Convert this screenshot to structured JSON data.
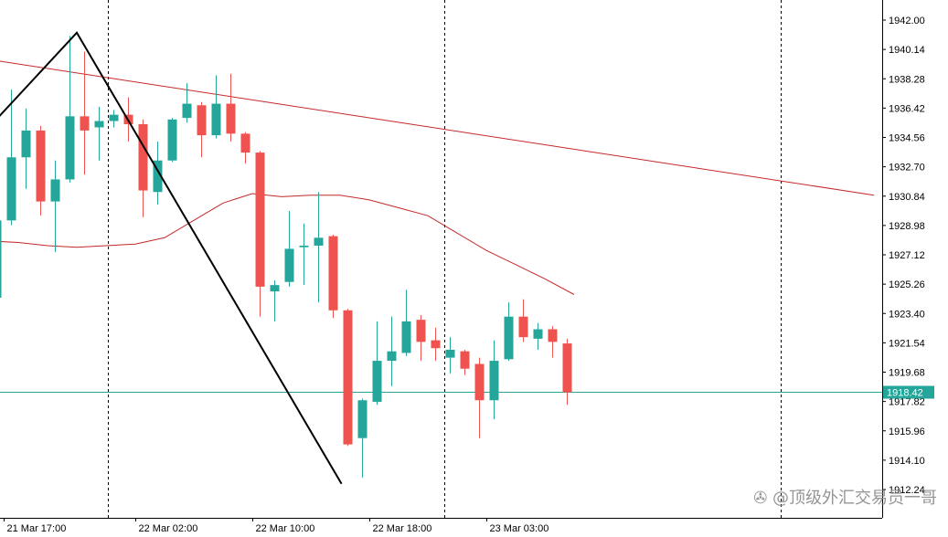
{
  "chart_data": {
    "type": "candlestick",
    "price_axis": {
      "min": 1912.24,
      "max": 1942.0,
      "ticks": [
        "1942.00",
        "1940.14",
        "1938.28",
        "1936.42",
        "1934.56",
        "1932.70",
        "1930.84",
        "1928.98",
        "1927.12",
        "1925.26",
        "1923.40",
        "1921.54",
        "1919.68",
        "1917.82",
        "1915.96",
        "1914.10",
        "1912.24"
      ]
    },
    "time_axis": {
      "labels": [
        {
          "text": "21 Mar 17:00",
          "bar": 0.5
        },
        {
          "text": "22 Mar 02:00",
          "bar": 9.5
        },
        {
          "text": "22 Mar 10:00",
          "bar": 17.5
        },
        {
          "text": "22 Mar 18:00",
          "bar": 25.5
        },
        {
          "text": "23 Mar 03:00",
          "bar": 33.5
        }
      ],
      "separators": [
        7.6,
        30.6,
        53.6
      ]
    },
    "current_price": {
      "value": "1918.42",
      "price": 1918.42
    },
    "colors": {
      "bull": "#26a69a",
      "bear": "#ef5350",
      "wick_bull": "#26a69a",
      "wick_bear": "#ef5350",
      "ma": "#c62828",
      "trend": "#c62828",
      "zigzag": "#000000",
      "price_line": "#26a69a"
    },
    "candles": [
      {
        "o": 1924.4,
        "h": 1936.1,
        "l": 1917.2,
        "c": 1929.3
      },
      {
        "o": 1929.3,
        "h": 1937.6,
        "l": 1929.0,
        "c": 1933.3
      },
      {
        "o": 1933.3,
        "h": 1936.4,
        "l": 1931.3,
        "c": 1935.0
      },
      {
        "o": 1935.0,
        "h": 1935.3,
        "l": 1929.6,
        "c": 1930.5
      },
      {
        "o": 1930.5,
        "h": 1933.1,
        "l": 1927.3,
        "c": 1931.9
      },
      {
        "o": 1931.9,
        "h": 1941.0,
        "l": 1931.7,
        "c": 1935.9
      },
      {
        "o": 1935.9,
        "h": 1940.0,
        "l": 1932.2,
        "c": 1935.0
      },
      {
        "o": 1935.2,
        "h": 1936.5,
        "l": 1933.1,
        "c": 1935.6
      },
      {
        "o": 1935.6,
        "h": 1936.3,
        "l": 1935.2,
        "c": 1936.0
      },
      {
        "o": 1936.0,
        "h": 1937.1,
        "l": 1934.3,
        "c": 1935.4
      },
      {
        "o": 1935.4,
        "h": 1935.7,
        "l": 1929.5,
        "c": 1931.2
      },
      {
        "o": 1931.1,
        "h": 1934.3,
        "l": 1930.3,
        "c": 1933.1
      },
      {
        "o": 1933.1,
        "h": 1935.8,
        "l": 1933.0,
        "c": 1935.7
      },
      {
        "o": 1935.8,
        "h": 1938.0,
        "l": 1935.5,
        "c": 1936.7
      },
      {
        "o": 1936.6,
        "h": 1936.8,
        "l": 1933.3,
        "c": 1934.7
      },
      {
        "o": 1934.7,
        "h": 1938.5,
        "l": 1934.5,
        "c": 1936.7
      },
      {
        "o": 1936.7,
        "h": 1938.6,
        "l": 1934.3,
        "c": 1934.8
      },
      {
        "o": 1934.8,
        "h": 1934.9,
        "l": 1932.9,
        "c": 1933.6
      },
      {
        "o": 1933.6,
        "h": 1933.7,
        "l": 1923.2,
        "c": 1925.1
      },
      {
        "o": 1924.8,
        "h": 1925.5,
        "l": 1922.9,
        "c": 1925.2
      },
      {
        "o": 1925.4,
        "h": 1929.9,
        "l": 1925.1,
        "c": 1927.5
      },
      {
        "o": 1927.6,
        "h": 1929.1,
        "l": 1925.2,
        "c": 1927.7
      },
      {
        "o": 1927.7,
        "h": 1931.1,
        "l": 1924.1,
        "c": 1928.2
      },
      {
        "o": 1928.3,
        "h": 1928.4,
        "l": 1923.1,
        "c": 1923.6
      },
      {
        "o": 1923.6,
        "h": 1923.7,
        "l": 1915.0,
        "c": 1915.1
      },
      {
        "o": 1915.5,
        "h": 1918.0,
        "l": 1913.0,
        "c": 1917.9
      },
      {
        "o": 1917.8,
        "h": 1922.9,
        "l": 1917.6,
        "c": 1920.4
      },
      {
        "o": 1920.4,
        "h": 1923.2,
        "l": 1918.8,
        "c": 1921.0
      },
      {
        "o": 1920.9,
        "h": 1924.9,
        "l": 1920.7,
        "c": 1922.9
      },
      {
        "o": 1923.0,
        "h": 1923.3,
        "l": 1920.4,
        "c": 1921.6
      },
      {
        "o": 1921.7,
        "h": 1922.5,
        "l": 1920.4,
        "c": 1921.2
      },
      {
        "o": 1920.6,
        "h": 1921.9,
        "l": 1919.6,
        "c": 1921.1
      },
      {
        "o": 1921.0,
        "h": 1921.1,
        "l": 1919.5,
        "c": 1919.9
      },
      {
        "o": 1920.2,
        "h": 1920.6,
        "l": 1915.5,
        "c": 1917.9
      },
      {
        "o": 1917.9,
        "h": 1921.7,
        "l": 1916.7,
        "c": 1920.4
      },
      {
        "o": 1920.5,
        "h": 1924.1,
        "l": 1920.4,
        "c": 1923.2
      },
      {
        "o": 1923.2,
        "h": 1924.3,
        "l": 1921.6,
        "c": 1921.9
      },
      {
        "o": 1921.8,
        "h": 1922.8,
        "l": 1921.1,
        "c": 1922.4
      },
      {
        "o": 1922.4,
        "h": 1922.6,
        "l": 1920.6,
        "c": 1921.6
      },
      {
        "o": 1921.5,
        "h": 1921.8,
        "l": 1917.6,
        "c": 1918.4
      }
    ],
    "moving_average": [
      [
        -0.5,
        1928.0
      ],
      [
        1.5,
        1927.9
      ],
      [
        3.5,
        1927.7
      ],
      [
        5.5,
        1927.6
      ],
      [
        7.5,
        1927.7
      ],
      [
        9.5,
        1927.8
      ],
      [
        11.5,
        1928.2
      ],
      [
        13.5,
        1929.3
      ],
      [
        15.5,
        1930.4
      ],
      [
        17.5,
        1931.0
      ],
      [
        19.5,
        1930.8
      ],
      [
        21.5,
        1930.9
      ],
      [
        23.5,
        1930.9
      ],
      [
        25.5,
        1930.6
      ],
      [
        27.5,
        1930.1
      ],
      [
        29.5,
        1929.6
      ],
      [
        31.5,
        1928.5
      ],
      [
        33.5,
        1927.4
      ],
      [
        35.5,
        1926.5
      ],
      [
        37.5,
        1925.6
      ],
      [
        39.5,
        1924.6
      ]
    ],
    "trendline": {
      "from": [
        -0.5,
        1939.5
      ],
      "to": [
        60.0,
        1930.9
      ]
    },
    "zigzag": [
      [
        -0.5,
        1935.2
      ],
      [
        5.5,
        1941.2
      ],
      [
        23.6,
        1912.6
      ]
    ]
  },
  "watermark": "@顶级外汇交易员一哥"
}
